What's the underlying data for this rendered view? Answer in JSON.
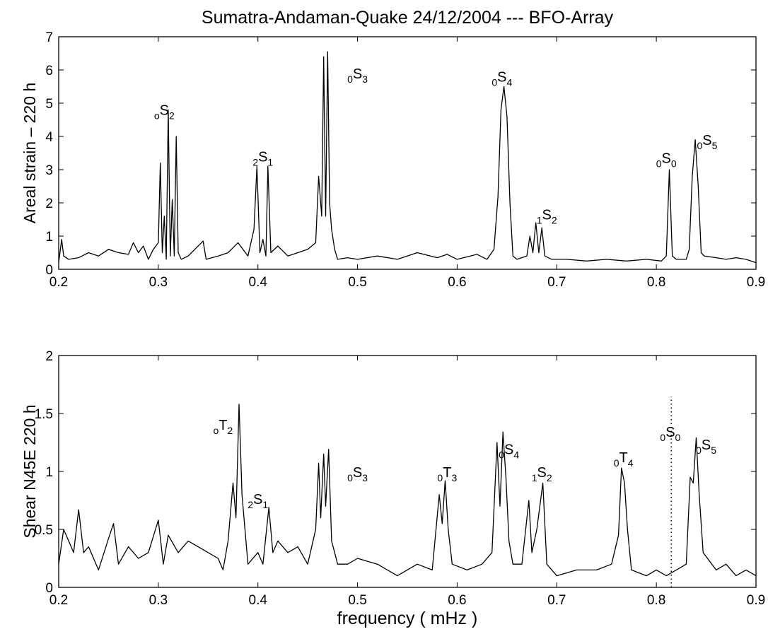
{
  "figure_title": "Sumatra-Andaman-Quake 24/12/2004 --- BFO-Array",
  "chart_data": [
    {
      "type": "line",
      "title": "Sumatra-Andaman-Quake 24/12/2004 --- BFO-Array",
      "xlabel": "",
      "ylabel": "Areal strain –  220 h",
      "xlim": [
        0.2,
        0.9
      ],
      "ylim": [
        0,
        7
      ],
      "xticks": [
        "0.2",
        "0.3",
        "0.4",
        "0.5",
        "0.6",
        "0.7",
        "0.8",
        "0.9"
      ],
      "yticks": [
        "0",
        "1",
        "2",
        "3",
        "4",
        "5",
        "6",
        "7"
      ],
      "grid": false,
      "series": [
        {
          "x": [
            0.2,
            0.203,
            0.205,
            0.21,
            0.22,
            0.23,
            0.24,
            0.25,
            0.26,
            0.27,
            0.275,
            0.28,
            0.285,
            0.29,
            0.295,
            0.3,
            0.302,
            0.304,
            0.306,
            0.308,
            0.31,
            0.312,
            0.314,
            0.316,
            0.318,
            0.32,
            0.323,
            0.33,
            0.345,
            0.348,
            0.36,
            0.37,
            0.38,
            0.39,
            0.396,
            0.399,
            0.402,
            0.405,
            0.408,
            0.41,
            0.413,
            0.42,
            0.43,
            0.44,
            0.45,
            0.458,
            0.461,
            0.464,
            0.466,
            0.468,
            0.47,
            0.472,
            0.474,
            0.477,
            0.48,
            0.49,
            0.5,
            0.52,
            0.54,
            0.56,
            0.58,
            0.59,
            0.6,
            0.62,
            0.63,
            0.637,
            0.641,
            0.644,
            0.647,
            0.65,
            0.653,
            0.656,
            0.66,
            0.67,
            0.673,
            0.676,
            0.679,
            0.682,
            0.685,
            0.688,
            0.695,
            0.71,
            0.73,
            0.75,
            0.77,
            0.79,
            0.805,
            0.81,
            0.813,
            0.816,
            0.82,
            0.83,
            0.833,
            0.836,
            0.839,
            0.842,
            0.845,
            0.848,
            0.86,
            0.87,
            0.88,
            0.89,
            0.9
          ],
          "y": [
            0.2,
            0.9,
            0.4,
            0.3,
            0.35,
            0.5,
            0.4,
            0.6,
            0.5,
            0.45,
            0.8,
            0.5,
            0.7,
            0.3,
            0.6,
            0.8,
            3.2,
            0.5,
            1.6,
            0.3,
            4.8,
            0.4,
            2.1,
            0.4,
            4.0,
            0.5,
            0.3,
            0.4,
            0.85,
            0.3,
            0.4,
            0.5,
            0.8,
            0.4,
            1.2,
            3.1,
            0.5,
            0.9,
            0.4,
            3.1,
            0.5,
            0.7,
            0.4,
            0.5,
            0.6,
            0.8,
            2.8,
            1.6,
            6.4,
            1.6,
            6.55,
            2.0,
            1.2,
            0.6,
            0.3,
            0.35,
            0.3,
            0.4,
            0.3,
            0.5,
            0.35,
            0.45,
            0.3,
            0.45,
            0.3,
            0.6,
            2.2,
            4.8,
            5.5,
            4.6,
            2.0,
            0.4,
            0.3,
            0.4,
            1.0,
            0.5,
            1.4,
            0.5,
            1.25,
            0.4,
            0.3,
            0.3,
            0.25,
            0.3,
            0.25,
            0.3,
            0.25,
            0.4,
            3.0,
            0.4,
            0.3,
            0.3,
            0.6,
            2.8,
            3.9,
            2.5,
            0.5,
            0.4,
            0.35,
            0.3,
            0.35,
            0.3,
            0.2
          ]
        }
      ],
      "annotations": [
        {
          "pre": "o",
          "letter": "S",
          "post": "2",
          "x": 0.306,
          "y": 4.65
        },
        {
          "pre": "2",
          "letter": "S",
          "post": "1",
          "x": 0.405,
          "y": 3.25
        },
        {
          "pre": "0",
          "letter": "S",
          "post": "3",
          "x": 0.5,
          "y": 5.75
        },
        {
          "pre": "0",
          "letter": "S",
          "post": "4",
          "x": 0.645,
          "y": 5.65
        },
        {
          "pre": "1",
          "letter": "S",
          "post": "2",
          "x": 0.69,
          "y": 1.5
        },
        {
          "pre": "0",
          "letter": "S",
          "post": "0",
          "x": 0.81,
          "y": 3.2
        },
        {
          "pre": "0",
          "letter": "S",
          "post": "5",
          "x": 0.851,
          "y": 3.75
        }
      ]
    },
    {
      "type": "line",
      "title": "",
      "xlabel": "frequency  ( mHz )",
      "ylabel": "Shear N45E  220 h",
      "xlim": [
        0.2,
        0.9
      ],
      "ylim": [
        0,
        2
      ],
      "xticks": [
        "0.2",
        "0.3",
        "0.4",
        "0.5",
        "0.6",
        "0.7",
        "0.8",
        "0.9"
      ],
      "yticks": [
        "0",
        "0.5",
        "1",
        "1.5",
        "2"
      ],
      "grid": false,
      "reference_line": {
        "x": 0.815,
        "style": "dotted",
        "label": "0S0"
      },
      "series": [
        {
          "x": [
            0.2,
            0.205,
            0.21,
            0.215,
            0.22,
            0.225,
            0.23,
            0.24,
            0.25,
            0.255,
            0.26,
            0.27,
            0.28,
            0.29,
            0.3,
            0.305,
            0.31,
            0.32,
            0.33,
            0.34,
            0.35,
            0.36,
            0.365,
            0.37,
            0.375,
            0.378,
            0.381,
            0.384,
            0.39,
            0.4,
            0.405,
            0.411,
            0.415,
            0.42,
            0.43,
            0.44,
            0.45,
            0.458,
            0.461,
            0.463,
            0.466,
            0.468,
            0.471,
            0.474,
            0.477,
            0.48,
            0.49,
            0.5,
            0.52,
            0.54,
            0.56,
            0.575,
            0.582,
            0.585,
            0.588,
            0.591,
            0.595,
            0.61,
            0.625,
            0.635,
            0.64,
            0.643,
            0.646,
            0.649,
            0.652,
            0.656,
            0.665,
            0.672,
            0.675,
            0.68,
            0.686,
            0.69,
            0.7,
            0.72,
            0.74,
            0.755,
            0.762,
            0.765,
            0.768,
            0.771,
            0.775,
            0.79,
            0.8,
            0.81,
            0.82,
            0.83,
            0.834,
            0.837,
            0.84,
            0.843,
            0.847,
            0.86,
            0.87,
            0.88,
            0.89,
            0.9
          ],
          "y": [
            0.2,
            0.5,
            0.4,
            0.3,
            0.67,
            0.3,
            0.35,
            0.15,
            0.42,
            0.55,
            0.2,
            0.35,
            0.25,
            0.3,
            0.58,
            0.2,
            0.45,
            0.3,
            0.4,
            0.35,
            0.3,
            0.25,
            0.15,
            0.4,
            0.9,
            0.6,
            1.58,
            0.8,
            0.2,
            0.3,
            0.2,
            0.69,
            0.3,
            0.4,
            0.3,
            0.35,
            0.2,
            0.5,
            1.07,
            0.6,
            1.15,
            0.7,
            1.19,
            0.4,
            0.3,
            0.2,
            0.2,
            0.25,
            0.2,
            0.1,
            0.2,
            0.15,
            0.8,
            0.55,
            0.92,
            0.5,
            0.2,
            0.15,
            0.2,
            0.3,
            1.25,
            0.7,
            1.34,
            0.95,
            0.4,
            0.2,
            0.2,
            0.75,
            0.3,
            0.5,
            0.9,
            0.2,
            0.1,
            0.15,
            0.15,
            0.2,
            0.45,
            1.03,
            0.9,
            0.5,
            0.15,
            0.1,
            0.15,
            0.1,
            0.15,
            0.2,
            0.95,
            0.9,
            1.29,
            0.8,
            0.3,
            0.15,
            0.2,
            0.1,
            0.15,
            0.1
          ]
        }
      ],
      "annotations": [
        {
          "pre": "o",
          "letter": "T",
          "post": "2",
          "x": 0.365,
          "y": 1.36
        },
        {
          "pre": "2",
          "letter": "S",
          "post": "1",
          "x": 0.4,
          "y": 0.72
        },
        {
          "pre": "0",
          "letter": "S",
          "post": "3",
          "x": 0.5,
          "y": 0.95
        },
        {
          "pre": "0",
          "letter": "T",
          "post": "3",
          "x": 0.59,
          "y": 0.95
        },
        {
          "pre": "0",
          "letter": "S",
          "post": "4",
          "x": 0.652,
          "y": 1.15
        },
        {
          "pre": "1",
          "letter": "S",
          "post": "2",
          "x": 0.685,
          "y": 0.95
        },
        {
          "pre": "0",
          "letter": "T",
          "post": "4",
          "x": 0.767,
          "y": 1.08
        },
        {
          "pre": "0",
          "letter": "S",
          "post": "0",
          "x": 0.814,
          "y": 1.3
        },
        {
          "pre": "0",
          "letter": "S",
          "post": "5",
          "x": 0.85,
          "y": 1.19
        }
      ]
    }
  ]
}
